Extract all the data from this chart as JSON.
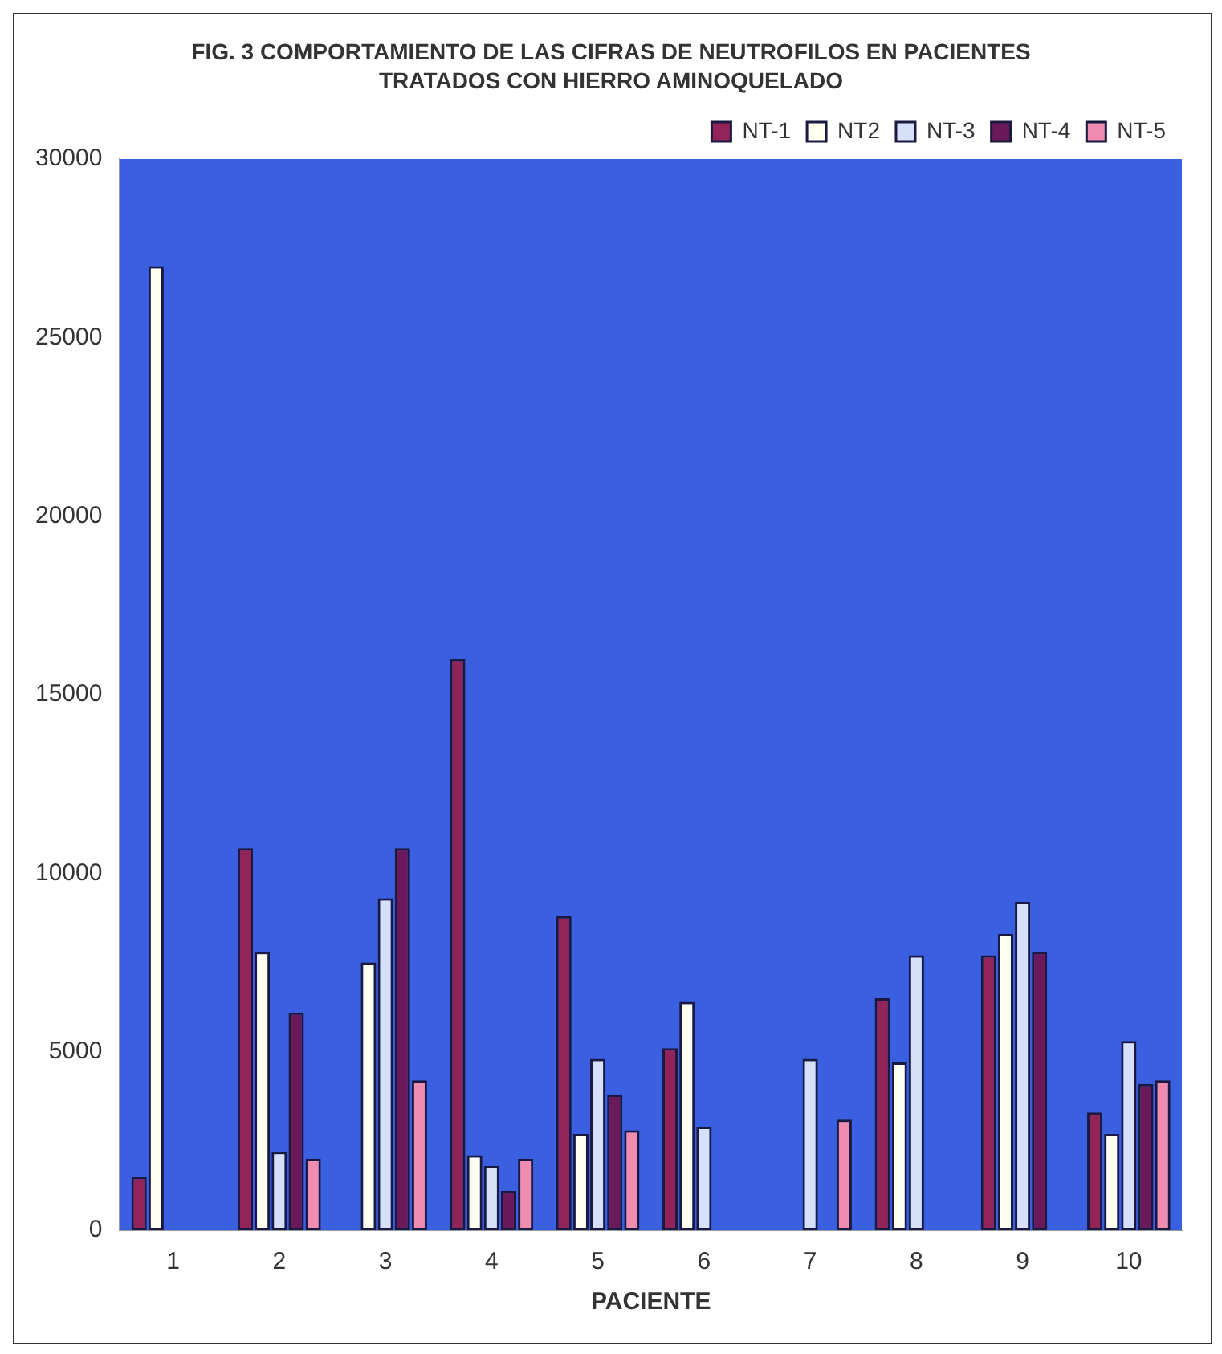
{
  "chart_data": {
    "type": "bar",
    "title": "FIG. 3 COMPORTAMIENTO DE LAS CIFRAS DE NEUTROFILOS EN PACIENTES TRATADOS CON HIERRO AMINOQUELADO",
    "xlabel": "PACIENTE",
    "categories": [
      "1",
      "2",
      "3",
      "4",
      "5",
      "6",
      "7",
      "8",
      "9",
      "10"
    ],
    "series": [
      {
        "name": "NT-1",
        "color": "#93245a",
        "values": [
          1500,
          10700,
          null,
          16000,
          8800,
          5100,
          null,
          6500,
          7700,
          3300
        ]
      },
      {
        "name": "NT2",
        "color": "#fffff0",
        "values": [
          27000,
          7800,
          7500,
          2100,
          2700,
          6400,
          null,
          4700,
          8300,
          2700
        ]
      },
      {
        "name": "NT-3",
        "color": "#d6e0f8",
        "values": [
          null,
          2200,
          9300,
          1800,
          4800,
          2900,
          4800,
          7700,
          9200,
          5300
        ]
      },
      {
        "name": "NT-4",
        "color": "#6a1a5a",
        "values": [
          null,
          6100,
          10700,
          1100,
          3800,
          null,
          null,
          null,
          7800,
          4100
        ]
      },
      {
        "name": "NT-5",
        "color": "#f08cb0",
        "values": [
          null,
          2000,
          4200,
          2000,
          2800,
          null,
          3100,
          null,
          null,
          4200
        ]
      }
    ],
    "ylim": [
      0,
      30000
    ],
    "yticks": [
      0,
      5000,
      10000,
      15000,
      20000,
      25000,
      30000
    ],
    "grid": false,
    "legend": "top"
  }
}
